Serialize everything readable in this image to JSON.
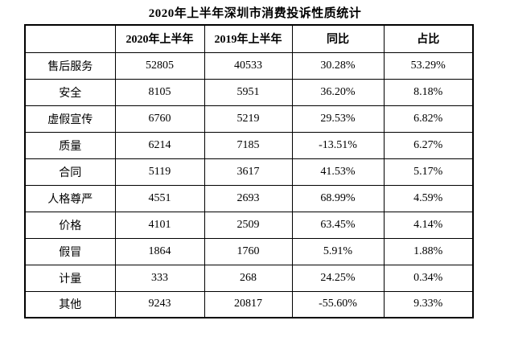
{
  "title": "2020年上半年深圳市消费投诉性质统计",
  "table": {
    "headers": [
      "",
      "2020年上半年",
      "2019年上半年",
      "同比",
      "占比"
    ],
    "rows": [
      [
        "售后服务",
        "52805",
        "40533",
        "30.28%",
        "53.29%"
      ],
      [
        "安全",
        "8105",
        "5951",
        "36.20%",
        "8.18%"
      ],
      [
        "虚假宣传",
        "6760",
        "5219",
        "29.53%",
        "6.82%"
      ],
      [
        "质量",
        "6214",
        "7185",
        "-13.51%",
        "6.27%"
      ],
      [
        "合同",
        "5119",
        "3617",
        "41.53%",
        "5.17%"
      ],
      [
        "人格尊严",
        "4551",
        "2693",
        "68.99%",
        "4.59%"
      ],
      [
        "价格",
        "4101",
        "2509",
        "63.45%",
        "4.14%"
      ],
      [
        "假冒",
        "1864",
        "1760",
        "5.91%",
        "1.88%"
      ],
      [
        "计量",
        "333",
        "268",
        "24.25%",
        "0.34%"
      ],
      [
        "其他",
        "9243",
        "20817",
        "-55.60%",
        "9.33%"
      ]
    ]
  },
  "chart_data": {
    "type": "table",
    "title": "2020年上半年深圳市消费投诉性质统计",
    "categories": [
      "售后服务",
      "安全",
      "虚假宣传",
      "质量",
      "合同",
      "人格尊严",
      "价格",
      "假冒",
      "计量",
      "其他"
    ],
    "series": [
      {
        "name": "2020年上半年",
        "values": [
          52805,
          8105,
          6760,
          6214,
          5119,
          4551,
          4101,
          1864,
          333,
          9243
        ]
      },
      {
        "name": "2019年上半年",
        "values": [
          40533,
          5951,
          5219,
          7185,
          3617,
          2693,
          2509,
          1760,
          268,
          20817
        ]
      },
      {
        "name": "同比",
        "values": [
          "30.28%",
          "36.20%",
          "29.53%",
          "-13.51%",
          "41.53%",
          "68.99%",
          "63.45%",
          "5.91%",
          "24.25%",
          "-55.60%"
        ]
      },
      {
        "name": "占比",
        "values": [
          "53.29%",
          "8.18%",
          "6.82%",
          "6.27%",
          "5.17%",
          "4.59%",
          "4.14%",
          "1.88%",
          "0.34%",
          "9.33%"
        ]
      }
    ],
    "colors": {
      "text": "#000000",
      "border": "#000000",
      "background": "#ffffff"
    }
  }
}
